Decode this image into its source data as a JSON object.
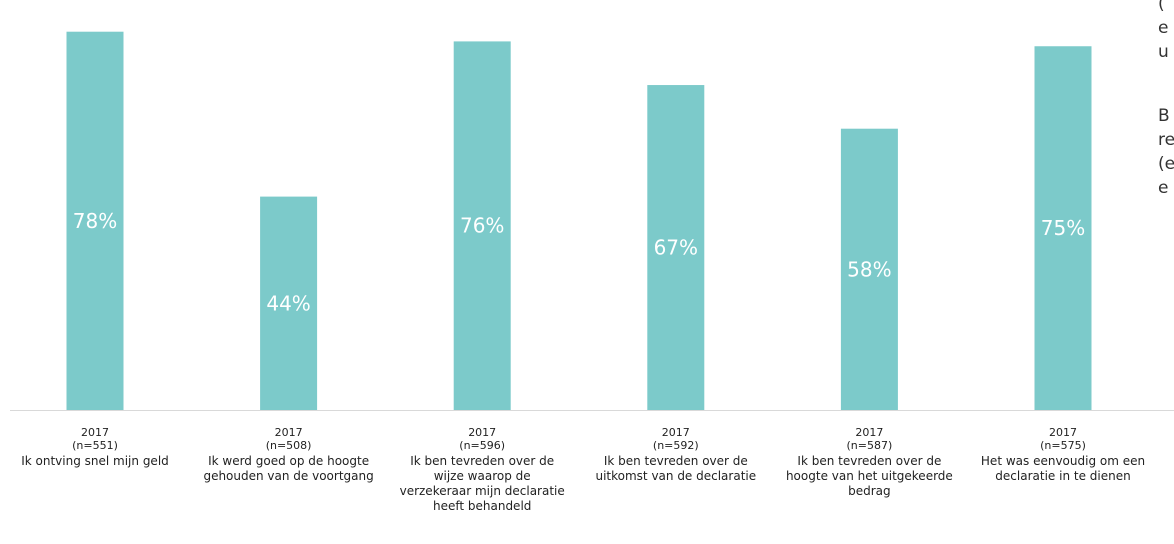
{
  "chart_data": {
    "type": "bar",
    "categories": [
      {
        "year": "2017",
        "n": "(n=551)",
        "label": [
          "Ik ontving snel mijn geld"
        ]
      },
      {
        "year": "2017",
        "n": "(n=508)",
        "label": [
          "Ik werd goed op de hoogte",
          "gehouden van de voortgang"
        ]
      },
      {
        "year": "2017",
        "n": "(n=596)",
        "label": [
          "Ik ben tevreden over de",
          "wijze waarop de",
          "verzekeraar mijn declaratie",
          "heeft behandeld"
        ]
      },
      {
        "year": "2017",
        "n": "(n=592)",
        "label": [
          "Ik ben tevreden over de",
          "uitkomst van de declaratie"
        ]
      },
      {
        "year": "2017",
        "n": "(n=587)",
        "label": [
          "Ik ben tevreden over de",
          "hoogte van het uitgekeerde",
          "bedrag"
        ]
      },
      {
        "year": "2017",
        "n": "(n=575)",
        "label": [
          "Het was eenvoudig om een",
          "declaratie in te dienen"
        ]
      }
    ],
    "values": [
      78,
      44,
      76,
      67,
      58,
      75
    ],
    "data_labels": [
      "78%",
      "44%",
      "76%",
      "67%",
      "58%",
      "75%"
    ],
    "ylim": [
      0,
      100
    ],
    "grid": false,
    "legend": "none",
    "bar_color": "#7ccaca",
    "label_color": "#ffffff"
  },
  "side_text": {
    "block1": [
      "(",
      "e",
      "u"
    ],
    "block2": [
      "B",
      "re",
      "(e",
      "e"
    ]
  }
}
